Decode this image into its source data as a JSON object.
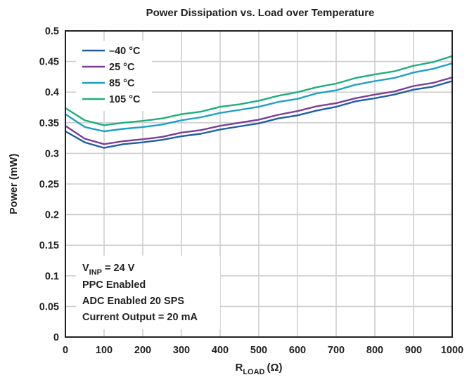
{
  "chart_data": {
    "type": "line",
    "title": "Power Dissipation vs. Load over Temperature",
    "xlabel_main": "R",
    "xlabel_sub": "LOAD",
    "xlabel_unit": "(Ω)",
    "ylabel": "Power (mW)",
    "xlim": [
      0,
      1000
    ],
    "ylim": [
      0,
      0.5
    ],
    "xticks": [
      "0",
      "100",
      "200",
      "300",
      "400",
      "500",
      "600",
      "700",
      "800",
      "900",
      "1000"
    ],
    "yticks": [
      "0",
      "0.05",
      "0.1",
      "0.15",
      "0.2",
      "0.25",
      "0.3",
      "0.35",
      "0.4",
      "0.45",
      "0.5"
    ],
    "grid": true,
    "legend_position": "top-left",
    "x": [
      0,
      50,
      100,
      150,
      200,
      250,
      300,
      350,
      400,
      450,
      500,
      550,
      600,
      650,
      700,
      750,
      800,
      850,
      900,
      950,
      1000
    ],
    "series": [
      {
        "name": "–40 °C",
        "color": "#1f5fa8",
        "values": [
          0.336,
          0.318,
          0.309,
          0.315,
          0.318,
          0.322,
          0.328,
          0.332,
          0.339,
          0.344,
          0.349,
          0.357,
          0.362,
          0.37,
          0.376,
          0.385,
          0.39,
          0.396,
          0.404,
          0.409,
          0.418
        ]
      },
      {
        "name": "25 °C",
        "color": "#7b3f98",
        "values": [
          0.345,
          0.324,
          0.315,
          0.32,
          0.323,
          0.327,
          0.334,
          0.338,
          0.345,
          0.35,
          0.355,
          0.363,
          0.369,
          0.377,
          0.382,
          0.39,
          0.396,
          0.401,
          0.41,
          0.415,
          0.424
        ]
      },
      {
        "name": "85 °C",
        "color": "#1ea0c8",
        "values": [
          0.364,
          0.343,
          0.336,
          0.34,
          0.343,
          0.347,
          0.354,
          0.359,
          0.366,
          0.371,
          0.376,
          0.384,
          0.389,
          0.398,
          0.403,
          0.412,
          0.418,
          0.423,
          0.432,
          0.438,
          0.447
        ]
      },
      {
        "name": "105 °C",
        "color": "#1fae7e",
        "values": [
          0.374,
          0.354,
          0.346,
          0.35,
          0.353,
          0.357,
          0.364,
          0.368,
          0.376,
          0.38,
          0.386,
          0.394,
          0.4,
          0.408,
          0.414,
          0.423,
          0.429,
          0.434,
          0.443,
          0.449,
          0.459
        ]
      }
    ],
    "annotation": {
      "line1_main": "V",
      "line1_sub": "INP",
      "line1_rest": " = 24 V",
      "lines": [
        "PPC Enabled",
        "ADC Enabled 20 SPS",
        "Current Output = 20 mA"
      ]
    }
  }
}
